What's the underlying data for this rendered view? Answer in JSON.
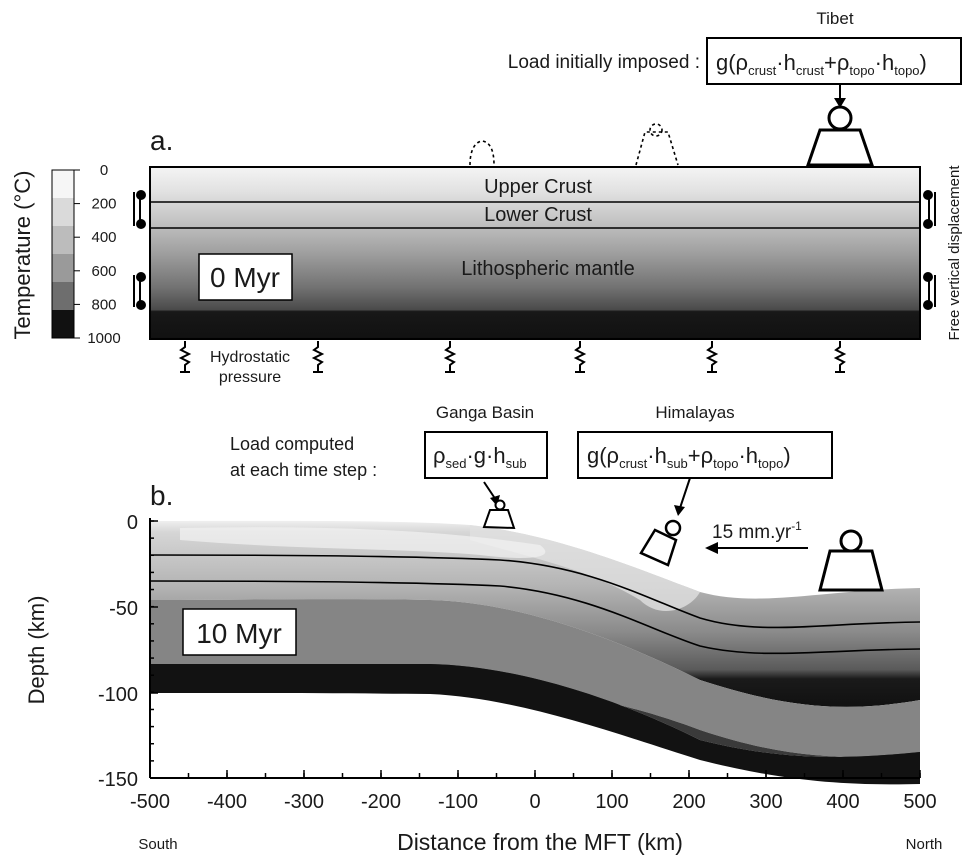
{
  "panel_a": {
    "label": "a.",
    "region_north_label": "Tibet",
    "load_caption": "Load initially imposed :",
    "load_formula": "g(ρcrust·hcrust+ρtopo·htopo)",
    "layers": [
      "Upper Crust",
      "Lower Crust",
      "Lithospheric mantle"
    ],
    "time_label": "0 Myr",
    "bottom_boundary": "Hydrostatic pressure",
    "side_boundary": "Free vertical displacement"
  },
  "colorbar": {
    "title": "Temperature (°C)",
    "ticks": [
      "0",
      "200",
      "400",
      "600",
      "800",
      "1000"
    ]
  },
  "panel_b": {
    "label": "b.",
    "basin_label": "Ganga Basin",
    "mountain_label": "Himalayas",
    "load_caption_line1": "Load computed",
    "load_caption_line2": "at each time step :",
    "basin_formula": "ρsed·g·hsub",
    "mountain_formula": "g(ρcrust·hsub+ρtopo·htopo)",
    "velocity_label": "15 mm.yr-1",
    "time_label": "10 Myr",
    "y_axis_label": "Depth (km)",
    "y_ticks": [
      "0",
      "-50",
      "-100",
      "-150"
    ],
    "x_axis_label": "Distance from the MFT (km)",
    "x_ticks": [
      "-500",
      "-400",
      "-300",
      "-200",
      "-100",
      "0",
      "100",
      "200",
      "300",
      "400",
      "500"
    ],
    "south_label": "South",
    "north_label": "North"
  }
}
